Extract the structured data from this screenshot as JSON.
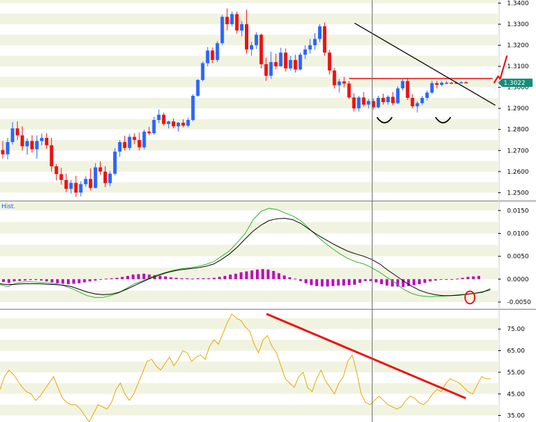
{
  "colors": {
    "band": "#f1f3e1",
    "bull": "#2a66ff",
    "bear": "#ee1111",
    "hist": "#c000c0",
    "fast": "#2bb52b",
    "slow": "#000000",
    "rsi": "#e5a700",
    "annotation": "#ee1111",
    "trendline": "#000000",
    "badge": "#0f8f7a"
  },
  "price_panel": {
    "current_price_badge": "1.3022",
    "yticks": [
      "1.2500",
      "1.2600",
      "1.2700",
      "1.2800",
      "1.2900",
      "1.3000",
      "1.3100",
      "1.3200",
      "1.3300",
      "1.3400"
    ]
  },
  "macd_panel": {
    "label": "Hist.",
    "yticks": [
      "-0.0050",
      "0.0000",
      "0.0050",
      "0.0100",
      "0.0150"
    ]
  },
  "rsi_panel": {
    "yticks": [
      "35.00",
      "45.00",
      "55.00",
      "65.00",
      "75.00"
    ]
  },
  "chart_data": [
    {
      "type": "candlestick",
      "title": "",
      "ylim": [
        1.2465,
        1.3415
      ],
      "grid": true,
      "candle_count": 96,
      "series": [
        {
          "values": [
            [
              1.2702,
              1.2745,
              1.2662,
              1.2682
            ],
            [
              1.2682,
              1.276,
              1.2658,
              1.274
            ],
            [
              1.274,
              1.2835,
              1.2728,
              1.2805
            ],
            [
              1.2805,
              1.2838,
              1.275,
              1.2772
            ],
            [
              1.2772,
              1.2815,
              1.27,
              1.272
            ],
            [
              1.272,
              1.2758,
              1.268,
              1.2745
            ],
            [
              1.2745,
              1.2772,
              1.269,
              1.2706
            ],
            [
              1.2706,
              1.2772,
              1.2662,
              1.2745
            ],
            [
              1.2745,
              1.278,
              1.2725,
              1.276
            ],
            [
              1.276,
              1.2782,
              1.2708,
              1.2725
            ],
            [
              1.2725,
              1.276,
              1.26,
              1.2625
            ],
            [
              1.2625,
              1.2635,
              1.2558,
              1.2588
            ],
            [
              1.2588,
              1.2618,
              1.2538,
              1.256
            ],
            [
              1.256,
              1.259,
              1.2502,
              1.2518
            ],
            [
              1.2518,
              1.256,
              1.2495,
              1.2546
            ],
            [
              1.2546,
              1.258,
              1.248,
              1.25
            ],
            [
              1.25,
              1.2554,
              1.2482,
              1.254
            ],
            [
              1.254,
              1.2578,
              1.2528,
              1.2565
            ],
            [
              1.2565,
              1.2615,
              1.251,
              1.2522
            ],
            [
              1.2522,
              1.264,
              1.252,
              1.262
            ],
            [
              1.262,
              1.2648,
              1.2585,
              1.26
            ],
            [
              1.26,
              1.2625,
              1.2526,
              1.2545
            ],
            [
              1.2545,
              1.2602,
              1.253,
              1.259
            ],
            [
              1.259,
              1.2712,
              1.2582,
              1.2695
            ],
            [
              1.2695,
              1.275,
              1.267,
              1.274
            ],
            [
              1.274,
              1.277,
              1.27,
              1.2712
            ],
            [
              1.2712,
              1.2778,
              1.27,
              1.2765
            ],
            [
              1.2765,
              1.2782,
              1.273,
              1.275
            ],
            [
              1.275,
              1.2785,
              1.27,
              1.2715
            ],
            [
              1.2715,
              1.28,
              1.2705,
              1.279
            ],
            [
              1.279,
              1.2812,
              1.2772,
              1.2782
            ],
            [
              1.2782,
              1.286,
              1.2775,
              1.2845
            ],
            [
              1.2845,
              1.2895,
              1.283,
              1.287
            ],
            [
              1.287,
              1.288,
              1.2818,
              1.2826
            ],
            [
              1.2826,
              1.2842,
              1.2805,
              1.2838
            ],
            [
              1.2838,
              1.2852,
              1.2806,
              1.2815
            ],
            [
              1.2815,
              1.2835,
              1.279,
              1.2832
            ],
            [
              1.2832,
              1.2848,
              1.281,
              1.2818
            ],
            [
              1.2818,
              1.2856,
              1.281,
              1.2845
            ],
            [
              1.2845,
              1.2968,
              1.2838,
              1.296
            ],
            [
              1.296,
              1.304,
              1.2955,
              1.3035
            ],
            [
              1.3035,
              1.3122,
              1.3028,
              1.3115
            ],
            [
              1.3115,
              1.3192,
              1.31,
              1.3175
            ],
            [
              1.3175,
              1.319,
              1.3115,
              1.313
            ],
            [
              1.313,
              1.322,
              1.312,
              1.321
            ],
            [
              1.321,
              1.3345,
              1.32,
              1.3335
            ],
            [
              1.3335,
              1.3375,
              1.327,
              1.33
            ],
            [
              1.33,
              1.336,
              1.329,
              1.3348
            ],
            [
              1.3348,
              1.336,
              1.3255,
              1.327
            ],
            [
              1.327,
              1.3315,
              1.3242,
              1.33
            ],
            [
              1.33,
              1.3368,
              1.316,
              1.318
            ],
            [
              1.318,
              1.3215,
              1.315,
              1.32
            ],
            [
              1.32,
              1.3262,
              1.3182,
              1.325
            ],
            [
              1.325,
              1.3255,
              1.309,
              1.311
            ],
            [
              1.311,
              1.314,
              1.303,
              1.3055
            ],
            [
              1.3055,
              1.317,
              1.304,
              1.312
            ],
            [
              1.312,
              1.316,
              1.3085,
              1.31
            ],
            [
              1.31,
              1.3188,
              1.3098,
              1.3165
            ],
            [
              1.3165,
              1.3185,
              1.3075,
              1.309
            ],
            [
              1.309,
              1.315,
              1.308,
              1.313
            ],
            [
              1.313,
              1.3155,
              1.307,
              1.3085
            ],
            [
              1.3085,
              1.3165,
              1.308,
              1.3155
            ],
            [
              1.3155,
              1.32,
              1.3135,
              1.318
            ],
            [
              1.318,
              1.323,
              1.316,
              1.32
            ],
            [
              1.32,
              1.3258,
              1.3178,
              1.323
            ],
            [
              1.323,
              1.33,
              1.3215,
              1.329
            ],
            [
              1.329,
              1.3308,
              1.315,
              1.3165
            ],
            [
              1.3165,
              1.3178,
              1.306,
              1.308
            ],
            [
              1.308,
              1.3092,
              1.2995,
              1.301
            ],
            [
              1.301,
              1.304,
              1.2975,
              1.3028
            ],
            [
              1.3028,
              1.305,
              1.3,
              1.3018
            ],
            [
              1.3018,
              1.303,
              1.2945,
              1.2952
            ],
            [
              1.2952,
              1.2972,
              1.2885,
              1.29
            ],
            [
              1.29,
              1.296,
              1.2885,
              1.2952
            ],
            [
              1.2952,
              1.2978,
              1.2908,
              1.2918
            ],
            [
              1.2918,
              1.2945,
              1.29,
              1.2935
            ],
            [
              1.2935,
              1.2948,
              1.2895,
              1.2905
            ],
            [
              1.2905,
              1.296,
              1.29,
              1.295
            ],
            [
              1.295,
              1.297,
              1.2918,
              1.293
            ],
            [
              1.293,
              1.2962,
              1.2918,
              1.2955
            ],
            [
              1.2955,
              1.2978,
              1.2915,
              1.2925
            ],
            [
              1.2925,
              1.3005,
              1.292,
              1.2995
            ],
            [
              1.2995,
              1.304,
              1.2985,
              1.303
            ],
            [
              1.303,
              1.3045,
              1.294,
              1.295
            ],
            [
              1.295,
              1.2968,
              1.29,
              1.291
            ],
            [
              1.291,
              1.2935,
              1.288,
              1.2925
            ],
            [
              1.2925,
              1.296,
              1.2915,
              1.295
            ],
            [
              1.295,
              1.2985,
              1.2938,
              1.2975
            ],
            [
              1.2975,
              1.3032,
              1.2968,
              1.302
            ],
            [
              1.302,
              1.303,
              1.2995,
              1.3012
            ],
            [
              1.3012,
              1.303,
              1.3005,
              1.3022
            ],
            [
              1.3022,
              1.303,
              1.3015,
              1.3022
            ],
            [
              1.3022,
              1.3025,
              1.3018,
              1.302
            ],
            [
              1.302,
              1.3026,
              1.3016,
              1.3022
            ],
            [
              1.3022,
              1.3028,
              1.3018,
              1.3024
            ],
            [
              1.3024,
              1.3028,
              1.302,
              1.3022
            ]
          ]
        }
      ],
      "annotations": {
        "resistance_level": 1.3042,
        "descending_trendline": [
          [
            71,
            1.3305
          ],
          [
            97,
            1.2915
          ]
        ],
        "bottoms_marked": [
          78,
          90
        ],
        "breakout_arrow": {
          "from": [
            95,
            1.3045
          ],
          "to": [
            99,
            1.314
          ]
        }
      }
    },
    {
      "type": "bar+line",
      "title": "",
      "ylim": [
        -0.0065,
        0.017
      ],
      "grid": true,
      "series": [
        {
          "name": "Hist.",
          "kind": "histogram",
          "values": [
            -0.0006,
            -0.0008,
            -0.0005,
            -0.0004,
            -0.0003,
            -0.0002,
            -0.0002,
            -0.0003,
            -0.0005,
            -0.0007,
            -0.0009,
            -0.001,
            -0.0011,
            -0.001,
            -0.0009,
            -0.0007,
            -0.0005,
            -0.0003,
            -0.0001,
            0.0001,
            0.0002,
            0.0003,
            0.0005,
            0.0007,
            0.001,
            0.0011,
            0.0012,
            0.001,
            0.0009,
            0.0007,
            0.0006,
            0.0004,
            0.0003,
            0.0002,
            0.0002,
            0.0001,
            0.0002,
            0.0002,
            0.0002,
            0.0003,
            0.0005,
            0.0007,
            0.001,
            0.0012,
            0.0015,
            0.0017,
            0.0019,
            0.0021,
            0.0022,
            0.0021,
            0.0018,
            0.0013,
            0.0008,
            0.0004,
            0.0001,
            -0.0004,
            -0.0009,
            -0.0013,
            -0.0015,
            -0.0016,
            -0.0016,
            -0.0015,
            -0.0014,
            -0.0014,
            -0.0013,
            -0.0012,
            -0.0008,
            -0.0004,
            -0.0004,
            -0.0007,
            -0.0011,
            -0.0014,
            -0.0016,
            -0.0016,
            -0.0017,
            -0.0015,
            -0.0013,
            -0.0011,
            -0.0008,
            -0.0005,
            -0.0003,
            -0.0001,
            -0.0001,
            0.0,
            0.0001,
            0.0003,
            0.0005,
            0.0006,
            0.0007
          ]
        },
        {
          "name": "",
          "kind": "fast-line",
          "values": [
            -0.0012,
            -0.0016,
            -0.0009,
            -0.0006,
            -0.0006,
            -0.0007,
            -0.0008,
            -0.001,
            -0.0014,
            -0.002,
            -0.0028,
            -0.0036,
            -0.004,
            -0.004,
            -0.0036,
            -0.003,
            -0.002,
            -0.001,
            -0.0004,
            0.0004,
            0.001,
            0.0015,
            0.002,
            0.0023,
            0.0025,
            0.0028,
            0.0032,
            0.0038,
            0.005,
            0.0062,
            0.008,
            0.01,
            0.013,
            0.0148,
            0.0155,
            0.0152,
            0.0145,
            0.0138,
            0.0128,
            0.0112,
            0.0095,
            0.008,
            0.0067,
            0.0055,
            0.0045,
            0.0038,
            0.0033,
            0.0025,
            0.0015,
            0.0003,
            -0.0008,
            -0.0022,
            -0.0031,
            -0.0036,
            -0.0038,
            -0.0038,
            -0.0037,
            -0.0036,
            -0.0034,
            -0.0033,
            -0.0031,
            -0.0029,
            -0.002
          ]
        },
        {
          "name": "",
          "kind": "slow-line",
          "values": [
            -0.001,
            -0.0012,
            -0.0011,
            -0.001,
            -0.001,
            -0.001,
            -0.0011,
            -0.0012,
            -0.0013,
            -0.0016,
            -0.0022,
            -0.0028,
            -0.0032,
            -0.0034,
            -0.0033,
            -0.0029,
            -0.0022,
            -0.0014,
            -0.0006,
            0.0002,
            0.0008,
            0.0014,
            0.0018,
            0.0021,
            0.0023,
            0.0025,
            0.0028,
            0.0033,
            0.0043,
            0.0055,
            0.007,
            0.0088,
            0.0105,
            0.0118,
            0.0128,
            0.0132,
            0.0133,
            0.013,
            0.0122,
            0.011,
            0.0098,
            0.0088,
            0.0078,
            0.0069,
            0.0061,
            0.0055,
            0.005,
            0.0043,
            0.0033,
            0.002,
            0.0008,
            -0.0004,
            -0.0015,
            -0.0024,
            -0.003,
            -0.0034,
            -0.0036,
            -0.0036,
            -0.0035,
            -0.0033,
            -0.0031,
            -0.0028,
            -0.0023
          ]
        }
      ],
      "annotations": {
        "circle_at_index": 87
      }
    },
    {
      "type": "line",
      "title": "",
      "ylim": [
        32,
        84
      ],
      "grid": true,
      "series": [
        {
          "name": "",
          "values": [
            47,
            53,
            56,
            54,
            51,
            48,
            46,
            45,
            42,
            44,
            47,
            50,
            53,
            48,
            43,
            41,
            40,
            40,
            38,
            35,
            32,
            36,
            40,
            39,
            38,
            41,
            47,
            50,
            45,
            42,
            45,
            50,
            55,
            60,
            61,
            58,
            56,
            59,
            62,
            58,
            61,
            65,
            64,
            60,
            62,
            63,
            61,
            67,
            70,
            68,
            73,
            78,
            82,
            80,
            79,
            76,
            74,
            68,
            64,
            70,
            72,
            67,
            64,
            58,
            52,
            50,
            48,
            53,
            55,
            48,
            46,
            52,
            56,
            51,
            48,
            45,
            50,
            53,
            60,
            63,
            55,
            45,
            41,
            40,
            42,
            44,
            42,
            40,
            39,
            38,
            39,
            42,
            44,
            43,
            41,
            40,
            42,
            45,
            47,
            46,
            50,
            52,
            51,
            50,
            48,
            46,
            45,
            49,
            53,
            52,
            52
          ]
        }
      ],
      "annotations": {
        "divergence_line": [
          [
            59,
            82
          ],
          [
            106,
            43
          ]
        ]
      }
    }
  ]
}
